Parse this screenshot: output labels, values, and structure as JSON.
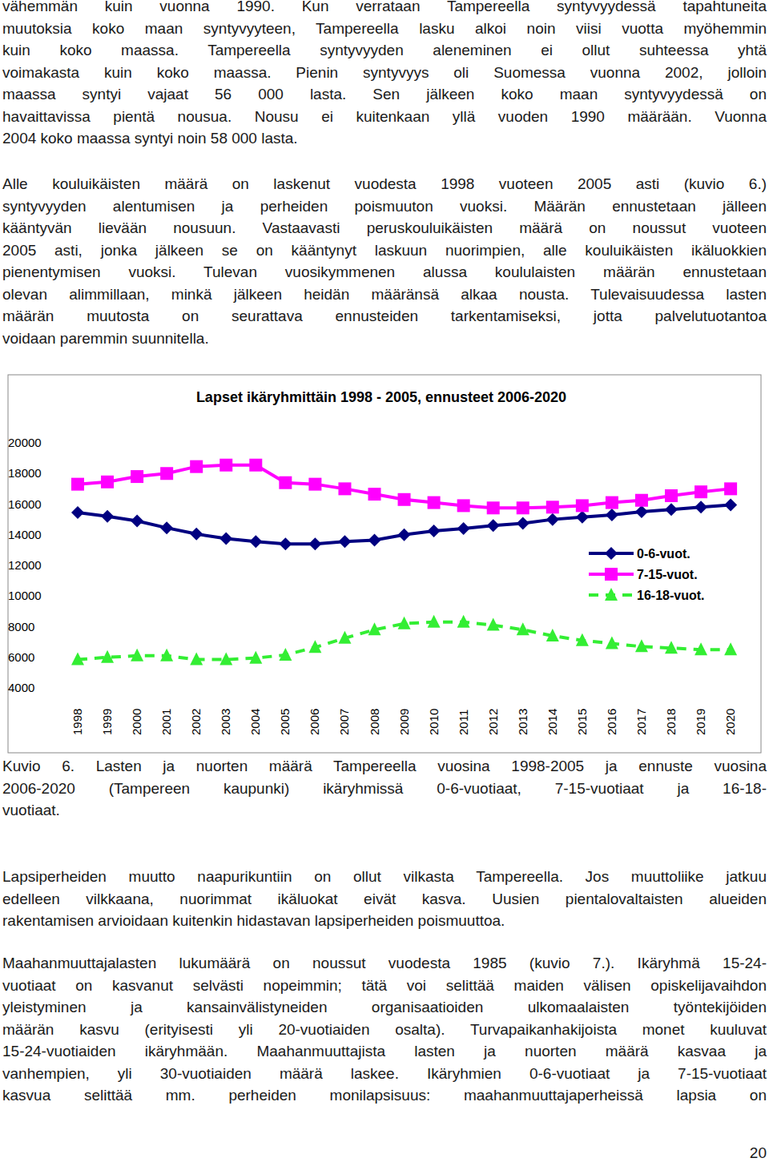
{
  "text_top": [
    {
      "lines": [
        "vähemmän kuin vuonna 1990. Kun verrataan Tampereella syntyvyydessä tapahtuneita",
        "muutoksia koko maan syntyvyyteen, Tampereella lasku alkoi noin viisi vuotta myöhemmin",
        "kuin koko maassa. Tampereella syntyvyyden aleneminen ei ollut suhteessa yhtä",
        "voimakasta kuin koko maassa. Pienin syntyvyys oli Suomessa vuonna 2002, jolloin",
        "maassa syntyi vajaat 56 000 lasta. Sen jälkeen koko maan syntyvyydessä on",
        "havaittavissa pientä nousua. Nousu ei kuitenkaan yllä vuoden 1990 määrään. Vuonna",
        "2004 koko maassa syntyi noin 58 000 lasta."
      ]
    },
    {
      "lines": [
        "Alle kouluikäisten määrä on laskenut vuodesta 1998 vuoteen 2005 asti (kuvio 6.)",
        "syntyvyyden alentumisen ja perheiden poismuuton vuoksi. Määrän ennustetaan jälleen",
        "kääntyvän lievään nousuun. Vastaavasti peruskouluikäisten määrä on noussut vuoteen",
        "2005 asti, jonka jälkeen se on kääntynyt laskuun nuorimpien, alle kouluikäisten ikäluokkien",
        "pienentymisen vuoksi. Tulevan vuosikymmenen alussa koululaisten määrän ennustetaan",
        "olevan alimmillaan, minkä jälkeen heidän määränsä alkaa nousta. Tulevaisuudessa lasten",
        "määrän muutosta on seurattava ennusteiden tarkentamiseksi, jotta palvelutuotantoa",
        "voidaan paremmin suunnitella."
      ]
    }
  ],
  "chart_data": {
    "type": "line",
    "title": "Lapset ikäryhmittäin 1998 - 2005, ennusteet 2006-2020",
    "categories": [
      "1998",
      "1999",
      "2000",
      "2001",
      "2002",
      "2003",
      "2004",
      "2005",
      "2006",
      "2007",
      "2008",
      "2009",
      "2010",
      "2011",
      "2012",
      "2013",
      "2014",
      "2015",
      "2016",
      "2017",
      "2018",
      "2019",
      "2020"
    ],
    "series": [
      {
        "name": "0-6-vuot.",
        "color": "#000080",
        "marker": "diamond",
        "line_style": "solid",
        "values": [
          15450,
          15200,
          14900,
          14450,
          14050,
          13750,
          13550,
          13400,
          13400,
          13550,
          13650,
          14000,
          14250,
          14400,
          14600,
          14750,
          15000,
          15150,
          15300,
          15500,
          15650,
          15800,
          15950
        ]
      },
      {
        "name": "7-15-vuot.",
        "color": "#ff00ff",
        "marker": "square",
        "line_style": "solid",
        "values": [
          17300,
          17450,
          17800,
          18000,
          18450,
          18550,
          18550,
          17400,
          17300,
          17000,
          16650,
          16300,
          16100,
          15900,
          15750,
          15750,
          15800,
          15900,
          16100,
          16250,
          16550,
          16800,
          17000
        ]
      },
      {
        "name": "16-18-vuot.",
        "color": "#33ee33",
        "marker": "triangle",
        "line_style": "dashed",
        "values": [
          5850,
          6000,
          6100,
          6100,
          5850,
          5850,
          5950,
          6150,
          6650,
          7250,
          7800,
          8200,
          8300,
          8300,
          8100,
          7800,
          7400,
          7100,
          6900,
          6700,
          6600,
          6500,
          6500
        ]
      }
    ],
    "ylim": [
      4000,
      20000
    ],
    "yticks": [
      4000,
      6000,
      8000,
      10000,
      12000,
      14000,
      16000,
      18000,
      20000
    ],
    "grid": false,
    "legend": "right"
  },
  "caption": {
    "lines": [
      "Kuvio 6. Lasten ja nuorten määrä Tampereella vuosina 1998-2005 ja ennuste vuosina",
      "2006-2020 (Tampereen kaupunki) ikäryhmissä 0-6-vuotiaat, 7-15-vuotiaat ja 16-18-",
      "vuotiaat."
    ]
  },
  "text_bottom": [
    {
      "lines": [
        "Lapsiperheiden muutto naapurikuntiin on ollut vilkasta Tampereella. Jos muuttoliike jatkuu",
        "edelleen vilkkaana, nuorimmat ikäluokat eivät kasva. Uusien pientalovaltaisten alueiden",
        "rakentamisen arvioidaan kuitenkin hidastavan lapsiperheiden poismuuttoa."
      ]
    },
    {
      "lines": [
        "Maahanmuuttajalasten lukumäärä on noussut vuodesta 1985 (kuvio 7.). Ikäryhmä 15-24-",
        "vuotiaat on kasvanut selvästi nopeimmin; tätä voi selittää maiden välisen opiskelijavaihdon",
        "yleistyminen ja kansainvälistyneiden organisaatioiden ulkomaalaisten työntekijöiden",
        "määrän kasvu (erityisesti yli 20-vuotiaiden osalta). Turvapaikanhakijoista monet kuuluvat",
        "15-24-vuotiaiden ikäryhmään. Maahanmuuttajista lasten ja nuorten määrä kasvaa ja",
        "vanhempien, yli 30-vuotiaiden määrä laskee. Ikäryhmien 0-6-vuotiaat ja 7-15-vuotiaat",
        "kasvua selittää mm. perheiden monilapsisuus: maahanmuuttajaperheissä lapsia on"
      ]
    }
  ],
  "page_number": "20"
}
